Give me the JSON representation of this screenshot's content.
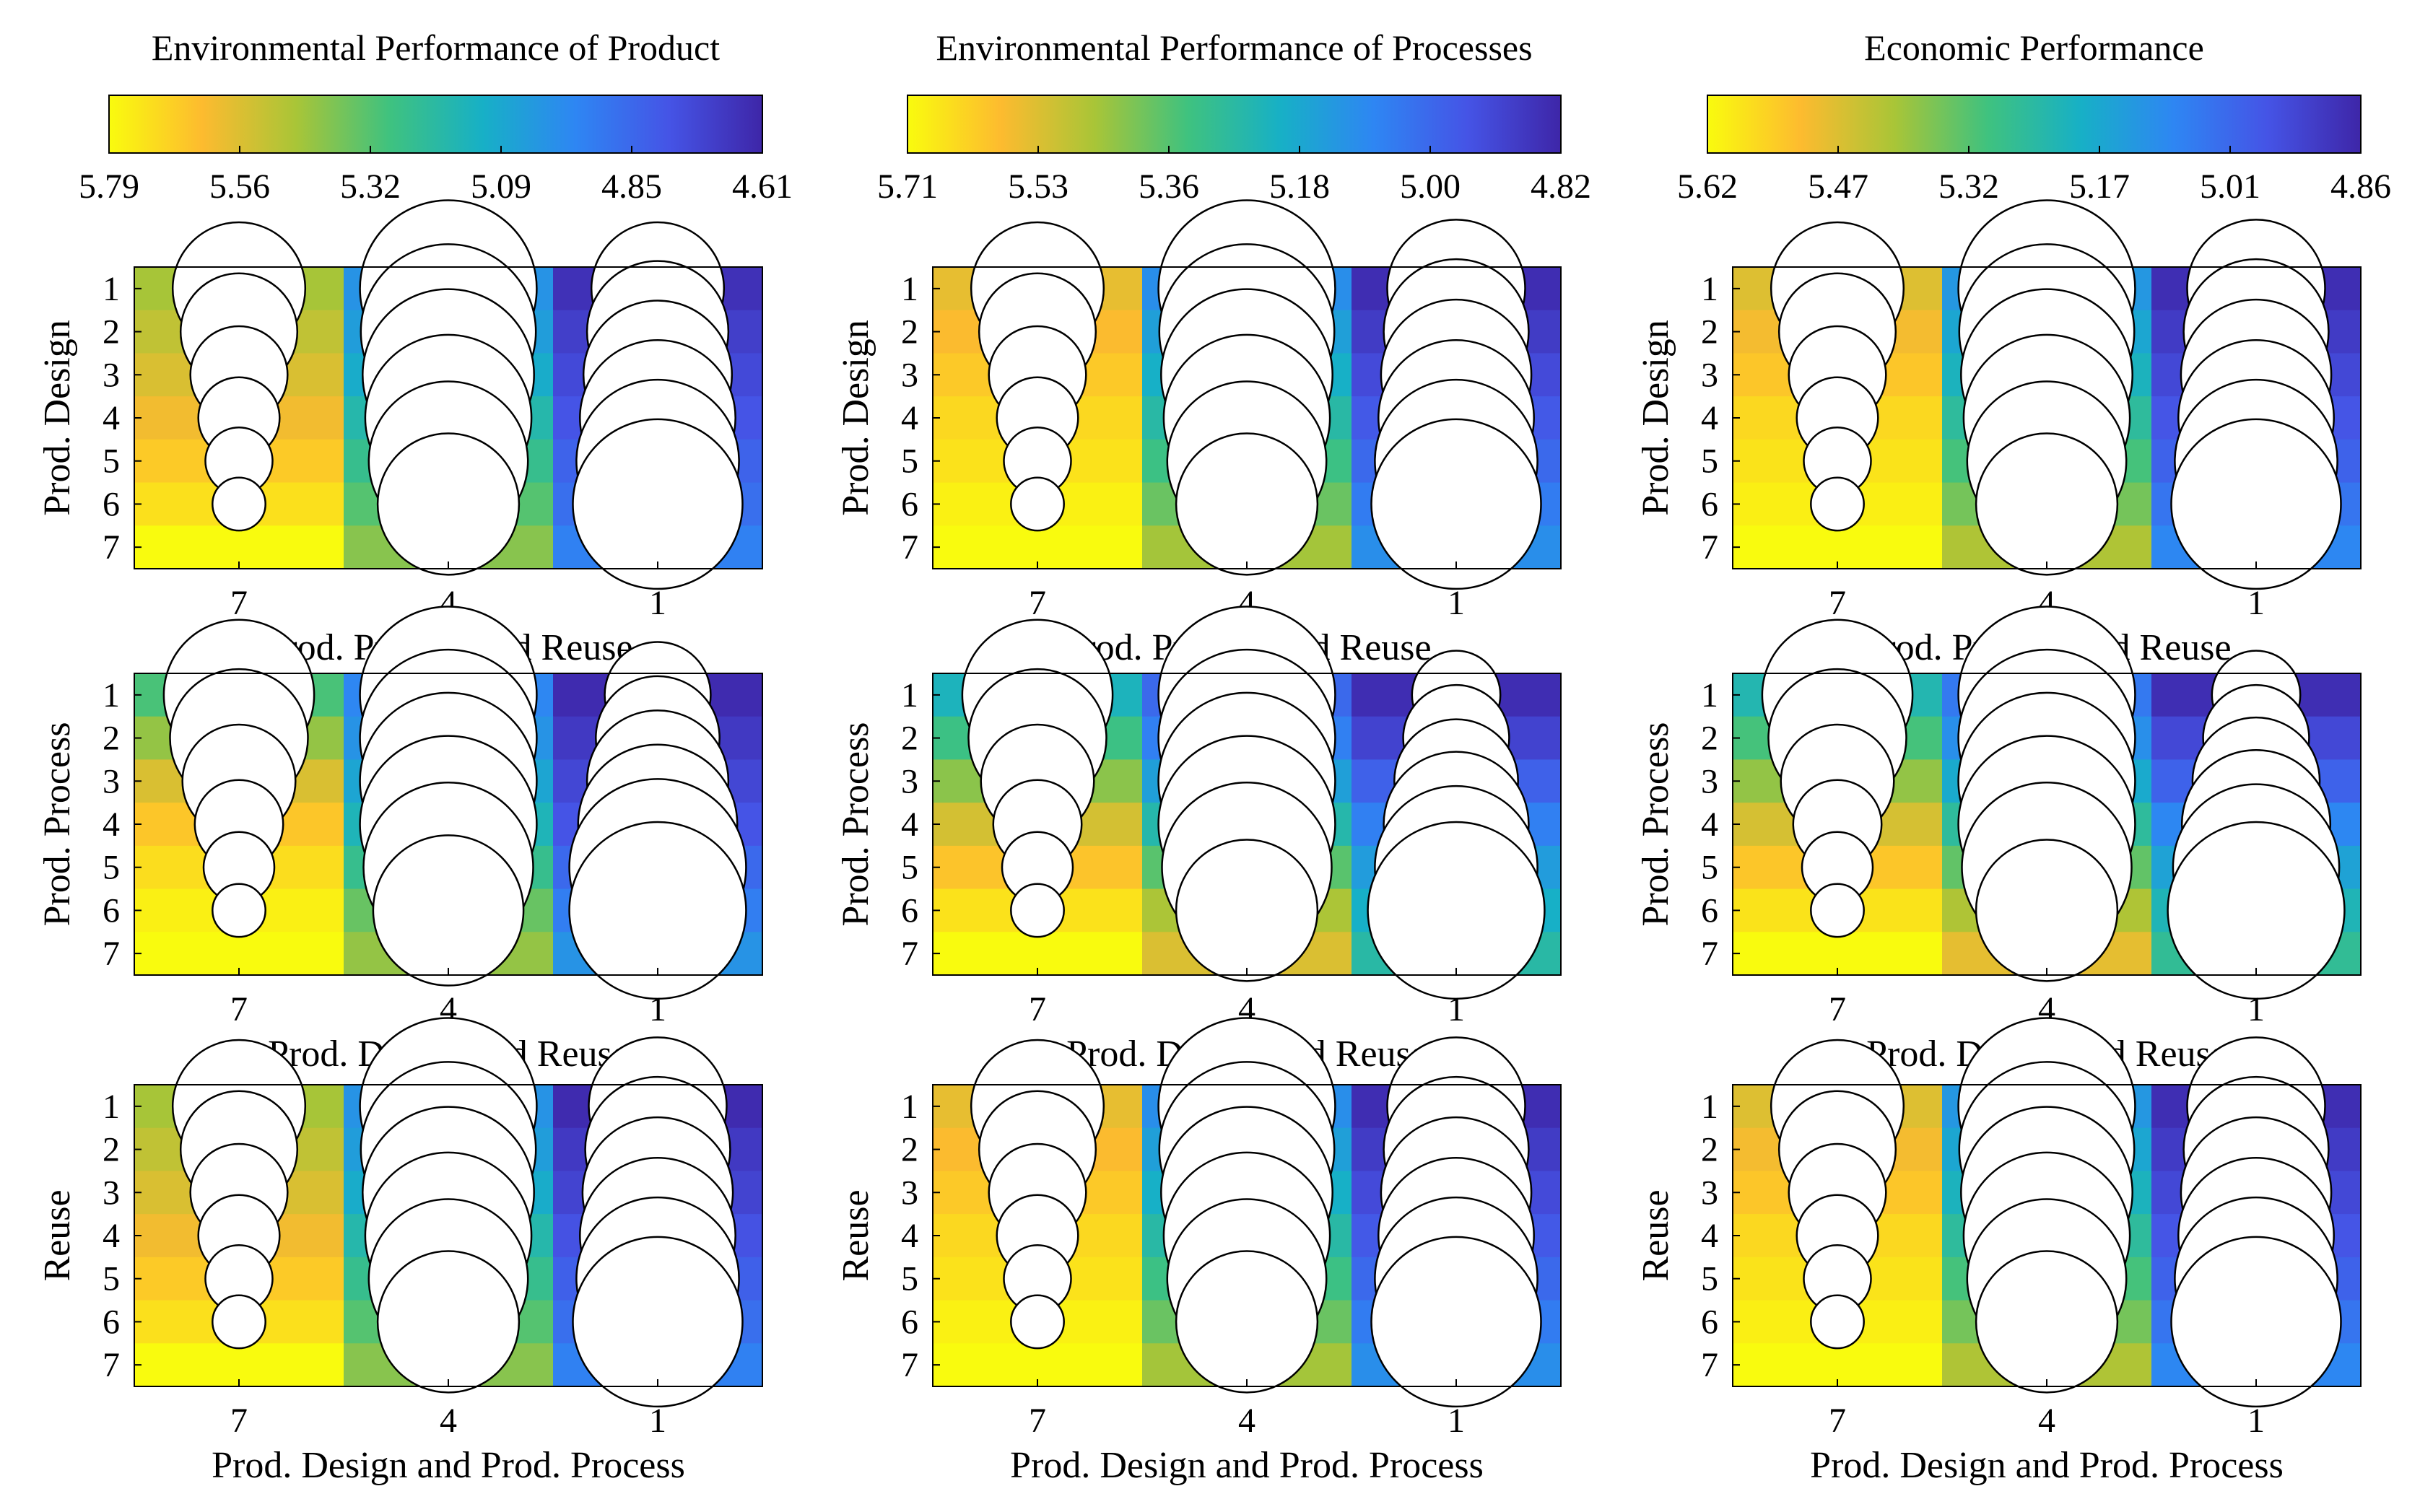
{
  "figure": {
    "colormap_stops": [
      "#f9fb0e",
      "#fdbb2f",
      "#a9c537",
      "#3fc27f",
      "#17b0c6",
      "#2e86f3",
      "#4554e6",
      "#3e26a8"
    ]
  },
  "chart_data": [
    {
      "type": "heatmap",
      "title": "Environmental Performance of Product",
      "colorbar": {
        "ticks": [
          "5.79",
          "5.56",
          "5.32",
          "5.09",
          "4.85",
          "4.61"
        ],
        "min": 4.61,
        "max": 5.79
      },
      "panels": [
        {
          "ylabel": "Prod. Design",
          "xlabel": "Prod. Process and Reuse",
          "x_ticks": [
            "7",
            "4",
            "1"
          ],
          "y_ticks": [
            "1",
            "2",
            "3",
            "4",
            "5",
            "6",
            "7"
          ],
          "cell_values": [
            [
              5.45,
              5.0,
              4.65
            ],
            [
              5.5,
              5.04,
              4.7
            ],
            [
              5.55,
              5.1,
              4.74
            ],
            [
              5.6,
              5.18,
              4.78
            ],
            [
              5.66,
              5.25,
              4.83
            ],
            [
              5.72,
              5.32,
              4.87
            ],
            [
              5.79,
              5.4,
              4.93
            ]
          ],
          "bubble_sizes": [
            [
              0.75,
              1.0,
              0.75
            ],
            [
              0.66,
              0.99,
              0.8
            ],
            [
              0.55,
              0.97,
              0.84
            ],
            [
              0.46,
              0.94,
              0.88
            ],
            [
              0.38,
              0.9,
              0.92
            ],
            [
              0.3,
              0.8,
              0.96
            ],
            [
              0.0,
              0.0,
              0.0
            ]
          ]
        },
        {
          "ylabel": "Prod. Process",
          "xlabel": "Prod. Design and Reuse",
          "x_ticks": [
            "7",
            "4",
            "1"
          ],
          "y_ticks": [
            "1",
            "2",
            "3",
            "4",
            "5",
            "6",
            "7"
          ],
          "cell_values": [
            [
              5.3,
              4.95,
              4.63
            ],
            [
              5.42,
              5.0,
              4.68
            ],
            [
              5.55,
              5.07,
              4.73
            ],
            [
              5.65,
              5.15,
              4.78
            ],
            [
              5.71,
              5.25,
              4.85
            ],
            [
              5.76,
              5.35,
              4.92
            ],
            [
              5.79,
              5.42,
              5.0
            ]
          ],
          "bubble_sizes": [
            [
              0.85,
              1.0,
              0.6
            ],
            [
              0.78,
              1.0,
              0.7
            ],
            [
              0.64,
              1.0,
              0.8
            ],
            [
              0.5,
              1.0,
              0.9
            ],
            [
              0.4,
              0.96,
              1.0
            ],
            [
              0.3,
              0.85,
              1.0
            ],
            [
              0.0,
              0.0,
              0.0
            ]
          ]
        },
        {
          "ylabel": "Reuse",
          "xlabel": "Prod. Design and Prod. Process",
          "x_ticks": [
            "7",
            "4",
            "1"
          ],
          "y_ticks": [
            "1",
            "2",
            "3",
            "4",
            "5",
            "6",
            "7"
          ],
          "cell_values": [
            [
              5.45,
              5.0,
              4.63
            ],
            [
              5.5,
              5.04,
              4.68
            ],
            [
              5.55,
              5.1,
              4.72
            ],
            [
              5.6,
              5.18,
              4.77
            ],
            [
              5.66,
              5.25,
              4.82
            ],
            [
              5.72,
              5.32,
              4.87
            ],
            [
              5.79,
              5.4,
              4.93
            ]
          ],
          "bubble_sizes": [
            [
              0.75,
              1.0,
              0.78
            ],
            [
              0.66,
              0.99,
              0.82
            ],
            [
              0.55,
              0.97,
              0.85
            ],
            [
              0.46,
              0.94,
              0.88
            ],
            [
              0.38,
              0.9,
              0.92
            ],
            [
              0.3,
              0.8,
              0.96
            ],
            [
              0.0,
              0.0,
              0.0
            ]
          ]
        }
      ]
    },
    {
      "type": "heatmap",
      "title": "Environmental Performance of Processes",
      "colorbar": {
        "ticks": [
          "5.71",
          "5.53",
          "5.36",
          "5.18",
          "5.00",
          "4.82"
        ],
        "min": 4.82,
        "max": 5.71
      },
      "panels": [
        {
          "ylabel": "Prod. Design",
          "xlabel": "Prod. Process and Reuse",
          "x_ticks": [
            "7",
            "4",
            "1"
          ],
          "y_ticks": [
            "1",
            "2",
            "3",
            "4",
            "5",
            "6",
            "7"
          ],
          "cell_values": [
            [
              5.55,
              5.1,
              4.84
            ],
            [
              5.58,
              5.15,
              4.88
            ],
            [
              5.61,
              5.2,
              4.92
            ],
            [
              5.64,
              5.26,
              4.96
            ],
            [
              5.66,
              5.32,
              5.0
            ],
            [
              5.69,
              5.38,
              5.05
            ],
            [
              5.71,
              5.45,
              5.1
            ]
          ],
          "bubble_sizes": [
            [
              0.75,
              1.0,
              0.78
            ],
            [
              0.66,
              0.99,
              0.82
            ],
            [
              0.55,
              0.97,
              0.85
            ],
            [
              0.46,
              0.94,
              0.88
            ],
            [
              0.38,
              0.9,
              0.92
            ],
            [
              0.3,
              0.8,
              0.96
            ],
            [
              0.0,
              0.0,
              0.0
            ]
          ]
        },
        {
          "ylabel": "Prod. Process",
          "xlabel": "Prod. Design and Reuse",
          "x_ticks": [
            "7",
            "4",
            "1"
          ],
          "y_ticks": [
            "1",
            "2",
            "3",
            "4",
            "5",
            "6",
            "7"
          ],
          "cell_values": [
            [
              5.22,
              5.0,
              4.84
            ],
            [
              5.32,
              5.06,
              4.9
            ],
            [
              5.42,
              5.15,
              4.98
            ],
            [
              5.52,
              5.25,
              5.06
            ],
            [
              5.6,
              5.36,
              5.14
            ],
            [
              5.66,
              5.46,
              5.2
            ],
            [
              5.71,
              5.53,
              5.26
            ]
          ],
          "bubble_sizes": [
            [
              0.85,
              1.0,
              0.5
            ],
            [
              0.78,
              1.0,
              0.6
            ],
            [
              0.64,
              1.0,
              0.7
            ],
            [
              0.5,
              1.0,
              0.82
            ],
            [
              0.4,
              0.96,
              0.92
            ],
            [
              0.3,
              0.8,
              1.0
            ],
            [
              0.0,
              0.0,
              0.0
            ]
          ]
        },
        {
          "ylabel": "Reuse",
          "xlabel": "Prod. Design and Prod. Process",
          "x_ticks": [
            "7",
            "4",
            "1"
          ],
          "y_ticks": [
            "1",
            "2",
            "3",
            "4",
            "5",
            "6",
            "7"
          ],
          "cell_values": [
            [
              5.55,
              5.1,
              4.84
            ],
            [
              5.58,
              5.15,
              4.88
            ],
            [
              5.61,
              5.2,
              4.92
            ],
            [
              5.64,
              5.26,
              4.96
            ],
            [
              5.66,
              5.32,
              5.0
            ],
            [
              5.69,
              5.38,
              5.05
            ],
            [
              5.71,
              5.45,
              5.1
            ]
          ],
          "bubble_sizes": [
            [
              0.75,
              1.0,
              0.78
            ],
            [
              0.66,
              0.99,
              0.82
            ],
            [
              0.55,
              0.97,
              0.85
            ],
            [
              0.46,
              0.94,
              0.88
            ],
            [
              0.38,
              0.9,
              0.92
            ],
            [
              0.3,
              0.8,
              0.96
            ],
            [
              0.0,
              0.0,
              0.0
            ]
          ]
        }
      ]
    },
    {
      "type": "heatmap",
      "title": "Economic Performance",
      "colorbar": {
        "ticks": [
          "5.62",
          "5.47",
          "5.32",
          "5.17",
          "5.01",
          "4.86"
        ],
        "min": 4.86,
        "max": 5.62
      },
      "panels": [
        {
          "ylabel": "Prod. Design",
          "xlabel": "Prod. Process and Reuse",
          "x_ticks": [
            "7",
            "4",
            "1"
          ],
          "y_ticks": [
            "1",
            "2",
            "3",
            "4",
            "5",
            "6",
            "7"
          ],
          "cell_values": [
            [
              5.47,
              5.12,
              4.88
            ],
            [
              5.5,
              5.16,
              4.91
            ],
            [
              5.53,
              5.2,
              4.94
            ],
            [
              5.56,
              5.25,
              4.97
            ],
            [
              5.58,
              5.3,
              5.0
            ],
            [
              5.6,
              5.35,
              5.04
            ],
            [
              5.62,
              5.41,
              5.08
            ]
          ],
          "bubble_sizes": [
            [
              0.75,
              1.0,
              0.78
            ],
            [
              0.66,
              0.99,
              0.82
            ],
            [
              0.55,
              0.97,
              0.85
            ],
            [
              0.46,
              0.94,
              0.88
            ],
            [
              0.38,
              0.9,
              0.92
            ],
            [
              0.3,
              0.8,
              0.96
            ],
            [
              0.0,
              0.0,
              0.0
            ]
          ]
        },
        {
          "ylabel": "Prod. Process",
          "xlabel": "Prod. Design and Reuse",
          "x_ticks": [
            "7",
            "4",
            "1"
          ],
          "y_ticks": [
            "1",
            "2",
            "3",
            "4",
            "5",
            "6",
            "7"
          ],
          "cell_values": [
            [
              5.22,
              5.05,
              4.88
            ],
            [
              5.3,
              5.1,
              4.94
            ],
            [
              5.38,
              5.17,
              5.0
            ],
            [
              5.46,
              5.25,
              5.08
            ],
            [
              5.53,
              5.33,
              5.15
            ],
            [
              5.58,
              5.41,
              5.21
            ],
            [
              5.62,
              5.48,
              5.26
            ]
          ],
          "bubble_sizes": [
            [
              0.85,
              1.0,
              0.5
            ],
            [
              0.78,
              1.0,
              0.6
            ],
            [
              0.64,
              1.0,
              0.72
            ],
            [
              0.5,
              1.0,
              0.84
            ],
            [
              0.4,
              0.96,
              0.94
            ],
            [
              0.3,
              0.8,
              1.0
            ],
            [
              0.0,
              0.0,
              0.0
            ]
          ]
        },
        {
          "ylabel": "Reuse",
          "xlabel": "Prod. Design and Prod. Process",
          "x_ticks": [
            "7",
            "4",
            "1"
          ],
          "y_ticks": [
            "1",
            "2",
            "3",
            "4",
            "5",
            "6",
            "7"
          ],
          "cell_values": [
            [
              5.47,
              5.12,
              4.88
            ],
            [
              5.5,
              5.16,
              4.91
            ],
            [
              5.53,
              5.2,
              4.94
            ],
            [
              5.56,
              5.25,
              4.97
            ],
            [
              5.58,
              5.3,
              5.0
            ],
            [
              5.6,
              5.35,
              5.04
            ],
            [
              5.62,
              5.41,
              5.08
            ]
          ],
          "bubble_sizes": [
            [
              0.75,
              1.0,
              0.78
            ],
            [
              0.66,
              0.99,
              0.82
            ],
            [
              0.55,
              0.97,
              0.85
            ],
            [
              0.46,
              0.94,
              0.88
            ],
            [
              0.38,
              0.9,
              0.92
            ],
            [
              0.3,
              0.8,
              0.96
            ],
            [
              0.0,
              0.0,
              0.0
            ]
          ]
        }
      ]
    }
  ]
}
